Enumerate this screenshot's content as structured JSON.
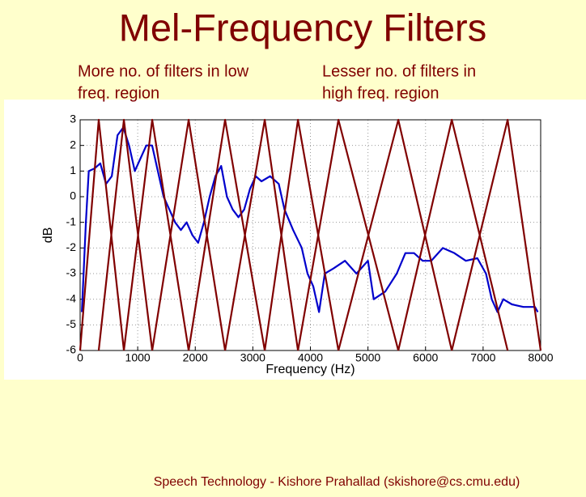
{
  "chart_data": {
    "type": "line",
    "title": "Mel-Frequency Filters",
    "annotations": [
      {
        "lines": [
          "More no. of filters in low",
          "freq. region"
        ]
      },
      {
        "lines": [
          "Lesser no. of  filters in",
          "high  freq. region"
        ]
      }
    ],
    "footer": "Speech Technology - Kishore Prahallad (skishore@cs.cmu.edu)",
    "xlabel": "Frequency (Hz)",
    "ylabel": "dB",
    "xlim": [
      0,
      8000
    ],
    "ylim": [
      -6,
      3
    ],
    "xticks": [
      0,
      1000,
      2000,
      3000,
      4000,
      5000,
      6000,
      7000,
      8000
    ],
    "yticks": [
      -6,
      -5,
      -4,
      -3,
      -2,
      -1,
      0,
      1,
      2,
      3
    ],
    "grid": true,
    "series": [
      {
        "color": "#0000cc",
        "x": [
          30,
          100,
          150,
          250,
          350,
          450,
          550,
          650,
          750,
          850,
          950,
          1050,
          1150,
          1250,
          1350,
          1450,
          1550,
          1650,
          1750,
          1850,
          1950,
          2050,
          2150,
          2250,
          2350,
          2450,
          2550,
          2650,
          2750,
          2850,
          2950,
          3050,
          3150,
          3300,
          3450,
          3550,
          3700,
          3850,
          3950,
          4050,
          4150,
          4250,
          4400,
          4600,
          4800,
          5000,
          5100,
          5300,
          5500,
          5650,
          5800,
          5950,
          6100,
          6300,
          6500,
          6700,
          6900,
          7050,
          7150,
          7250,
          7350,
          7500,
          7700,
          7900,
          7950
        ],
        "values": [
          -4.5,
          -1,
          1,
          1.1,
          1.3,
          0.5,
          0.8,
          2.4,
          2.7,
          2,
          1,
          1.5,
          2,
          2,
          1,
          0,
          -0.5,
          -1,
          -1.3,
          -1,
          -1.5,
          -1.8,
          -1,
          0,
          0.8,
          1.2,
          0,
          -0.5,
          -0.8,
          -0.5,
          0.3,
          0.8,
          0.6,
          0.8,
          0.5,
          -0.5,
          -1.3,
          -2,
          -3,
          -3.5,
          -4.5,
          -3,
          -2.8,
          -2.5,
          -3,
          -2.5,
          -4,
          -3.7,
          -3,
          -2.2,
          -2.2,
          -2.5,
          -2.5,
          -2,
          -2.2,
          -2.5,
          -2.4,
          -3,
          -4,
          -4.5,
          -4,
          -4.2,
          -4.3,
          -4.3,
          -4.5
        ]
      },
      {
        "color": "#800000",
        "x": [
          0,
          323,
          760
        ],
        "values": [
          -6,
          3,
          -6
        ]
      },
      {
        "color": "#800000",
        "x": [
          323,
          760,
          1252
        ],
        "values": [
          -6,
          3,
          -6
        ]
      },
      {
        "color": "#800000",
        "x": [
          760,
          1252,
          1885
        ],
        "values": [
          -6,
          3,
          -6
        ]
      },
      {
        "color": "#800000",
        "x": [
          1252,
          1885,
          2518
        ],
        "values": [
          -6,
          3,
          -6
        ]
      },
      {
        "color": "#800000",
        "x": [
          1885,
          2518,
          3207
        ],
        "values": [
          -6,
          3,
          -6
        ]
      },
      {
        "color": "#800000",
        "x": [
          2518,
          3207,
          3784
        ],
        "values": [
          -6,
          3,
          -6
        ]
      },
      {
        "color": "#800000",
        "x": [
          3207,
          3784,
          4487
        ],
        "values": [
          -6,
          3,
          -6
        ]
      },
      {
        "color": "#800000",
        "x": [
          3784,
          4487,
          5527
        ],
        "values": [
          -6,
          3,
          -6
        ]
      },
      {
        "color": "#800000",
        "x": [
          4487,
          5527,
          6456
        ],
        "values": [
          -6,
          3,
          -6
        ]
      },
      {
        "color": "#800000",
        "x": [
          5527,
          6456,
          7426
        ],
        "values": [
          -6,
          3,
          -6
        ]
      },
      {
        "color": "#800000",
        "x": [
          6456,
          7426,
          8000
        ],
        "values": [
          -6,
          3,
          -6
        ]
      }
    ]
  }
}
